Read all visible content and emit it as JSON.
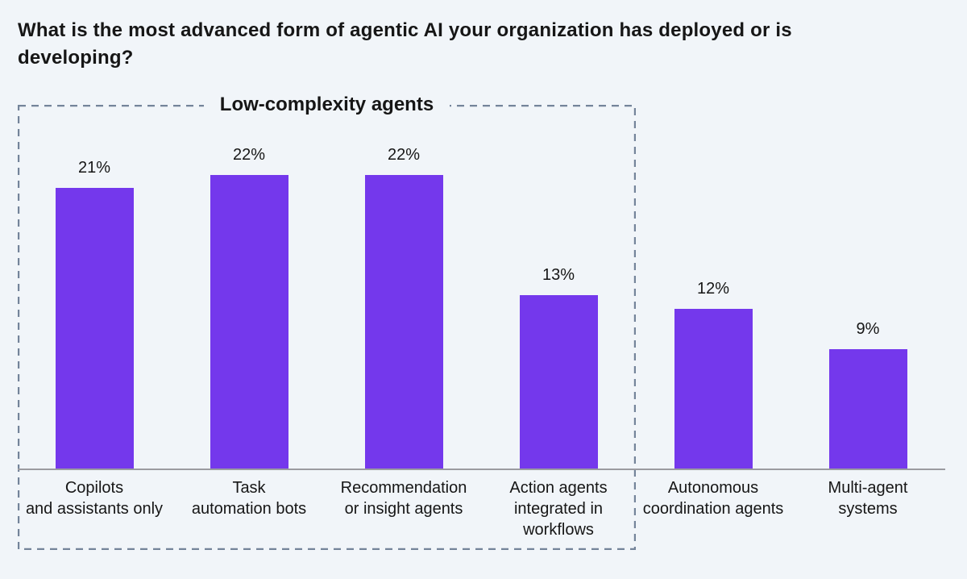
{
  "page": {
    "background": "#F1F5F9",
    "text_color": "#161616"
  },
  "header": {
    "title": "What is the most advanced form of agentic AI your organization has deployed or is developing?"
  },
  "group_box": {
    "label": "Low-complexity agents",
    "border_color": "#74849A",
    "encloses_categories": [
      "Copilots and assistants only",
      "Task automation bots",
      "Recommendation or insight agents",
      "Action agents integrated in workflows"
    ]
  },
  "chart_data": {
    "type": "bar",
    "title": "What is the most advanced form of agentic AI your organization has deployed or is developing?",
    "categories": [
      "Copilots and assistants only",
      "Task automation bots",
      "Recommendation or insight agents",
      "Action agents integrated in workflows",
      "Autonomous coordination agents",
      "Multi-agent systems"
    ],
    "category_lines": [
      [
        "Copilots",
        "and assistants only"
      ],
      [
        "Task",
        "automation bots"
      ],
      [
        "Recommendation",
        "or insight agents"
      ],
      [
        "Action agents",
        "integrated in",
        "workflows"
      ],
      [
        "Autonomous",
        "coordination agents"
      ],
      [
        "Multi-agent",
        "systems"
      ]
    ],
    "values": [
      21,
      22,
      22,
      13,
      12,
      9
    ],
    "value_labels": [
      "21%",
      "22%",
      "22%",
      "13%",
      "12%",
      "9%"
    ],
    "unit": "%",
    "xlabel": "",
    "ylabel": "",
    "ylim": [
      0,
      25
    ],
    "grid": false,
    "legend": "none",
    "bar_color": "#7438EC",
    "axis_line_color": "#9B9BA0",
    "annotations": [
      "Dashed box labeled 'Low-complexity agents' encloses the first four bars"
    ]
  }
}
